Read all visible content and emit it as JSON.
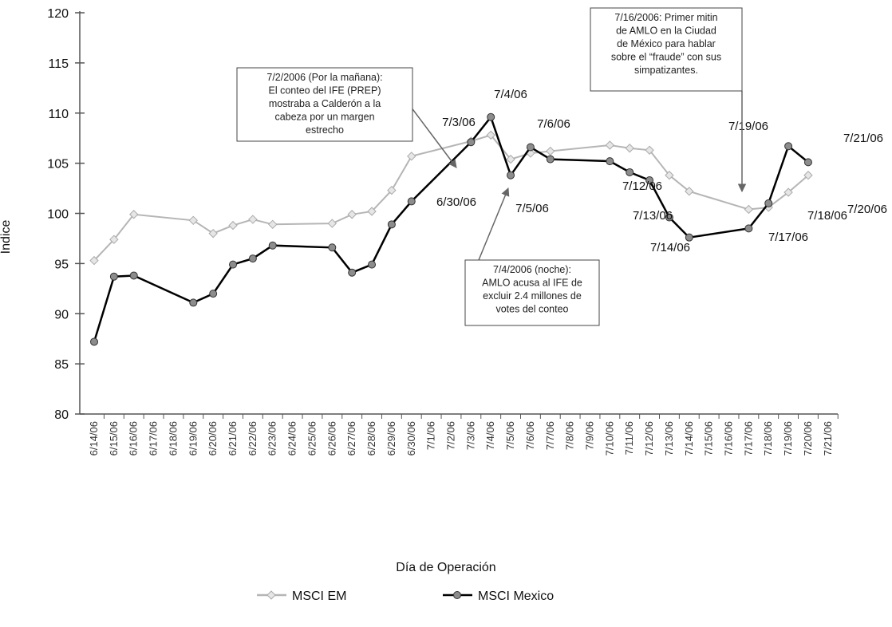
{
  "chart_data": {
    "type": "line",
    "x_label": "Día de Operación",
    "y_label": "Índice",
    "categories": [
      "6/14/06",
      "6/15/06",
      "6/16/06",
      "6/17/06",
      "6/18/06",
      "6/19/06",
      "6/20/06",
      "6/21/06",
      "6/22/06",
      "6/23/06",
      "6/24/06",
      "6/25/06",
      "6/26/06",
      "6/27/06",
      "6/28/06",
      "6/29/06",
      "6/30/06",
      "7/1/06",
      "7/2/06",
      "7/3/06",
      "7/4/06",
      "7/5/06",
      "7/6/06",
      "7/7/06",
      "7/8/06",
      "7/9/06",
      "7/10/06",
      "7/11/06",
      "7/12/06",
      "7/13/06",
      "7/14/06",
      "7/15/06",
      "7/16/06",
      "7/17/06",
      "7/18/06",
      "7/19/06",
      "7/20/06",
      "7/21/06"
    ],
    "ylim": [
      80,
      120
    ],
    "yticks": [
      80,
      85,
      90,
      95,
      100,
      105,
      110,
      115,
      120
    ],
    "series": [
      {
        "name": "MSCI EM",
        "color": "#b5b5b5",
        "x": [
          "6/14/06",
          "6/15/06",
          "6/16/06",
          "6/19/06",
          "6/20/06",
          "6/21/06",
          "6/22/06",
          "6/23/06",
          "6/26/06",
          "6/27/06",
          "6/28/06",
          "6/29/06",
          "6/30/06",
          "7/3/06",
          "7/4/06",
          "7/5/06",
          "7/6/06",
          "7/7/06",
          "7/10/06",
          "7/11/06",
          "7/12/06",
          "7/13/06",
          "7/14/06",
          "7/17/06",
          "7/18/06",
          "7/19/06",
          "7/20/06"
        ],
        "values": [
          95.3,
          97.4,
          99.9,
          99.3,
          98.0,
          98.8,
          99.4,
          98.9,
          99.0,
          99.9,
          100.2,
          102.3,
          105.7,
          107.2,
          107.8,
          105.4,
          106.0,
          106.2,
          106.8,
          106.5,
          106.3,
          103.8,
          102.2,
          100.4,
          100.6,
          102.1,
          103.8
        ]
      },
      {
        "name": "MSCI Mexico",
        "color": "#000000",
        "x": [
          "6/14/06",
          "6/15/06",
          "6/16/06",
          "6/19/06",
          "6/20/06",
          "6/21/06",
          "6/22/06",
          "6/23/06",
          "6/26/06",
          "6/27/06",
          "6/28/06",
          "6/29/06",
          "6/30/06",
          "7/3/06",
          "7/4/06",
          "7/5/06",
          "7/6/06",
          "7/7/06",
          "7/10/06",
          "7/11/06",
          "7/12/06",
          "7/13/06",
          "7/14/06",
          "7/17/06",
          "7/18/06",
          "7/19/06",
          "7/20/06"
        ],
        "values": [
          87.2,
          93.7,
          93.8,
          91.1,
          92.0,
          94.9,
          95.5,
          96.8,
          96.6,
          94.1,
          94.9,
          98.9,
          101.2,
          107.1,
          109.6,
          103.8,
          106.6,
          105.4,
          105.2,
          104.1,
          103.3,
          99.6,
          97.6,
          98.5,
          101.0,
          106.7,
          105.1
        ]
      }
    ],
    "point_labels": [
      "7/4/06",
      "7/3/06",
      "7/6/06",
      "6/30/06",
      "7/5/06",
      "7/12/06",
      "7/13/06",
      "7/14/06",
      "7/17/06",
      "7/18/06",
      "7/19/06",
      "7/21/06",
      "7/20/06"
    ],
    "annotations": [
      {
        "lines": [
          "7/2/2006 (Por la mañana):",
          "El conteo del IFE (PREP)",
          "mostraba a Calderón a la",
          "cabeza por un margen",
          "estrecho"
        ]
      },
      {
        "lines": [
          "7/4/2006 (noche):",
          "AMLO acusa al IFE de",
          "excluir 2.4 millones de",
          "votes del conteo"
        ]
      },
      {
        "lines": [
          "7/16/2006: Primer mitin",
          "de AMLO en la Ciudad",
          "de México para hablar",
          "sobre el “fraude” con sus",
          "simpatizantes."
        ]
      }
    ]
  }
}
